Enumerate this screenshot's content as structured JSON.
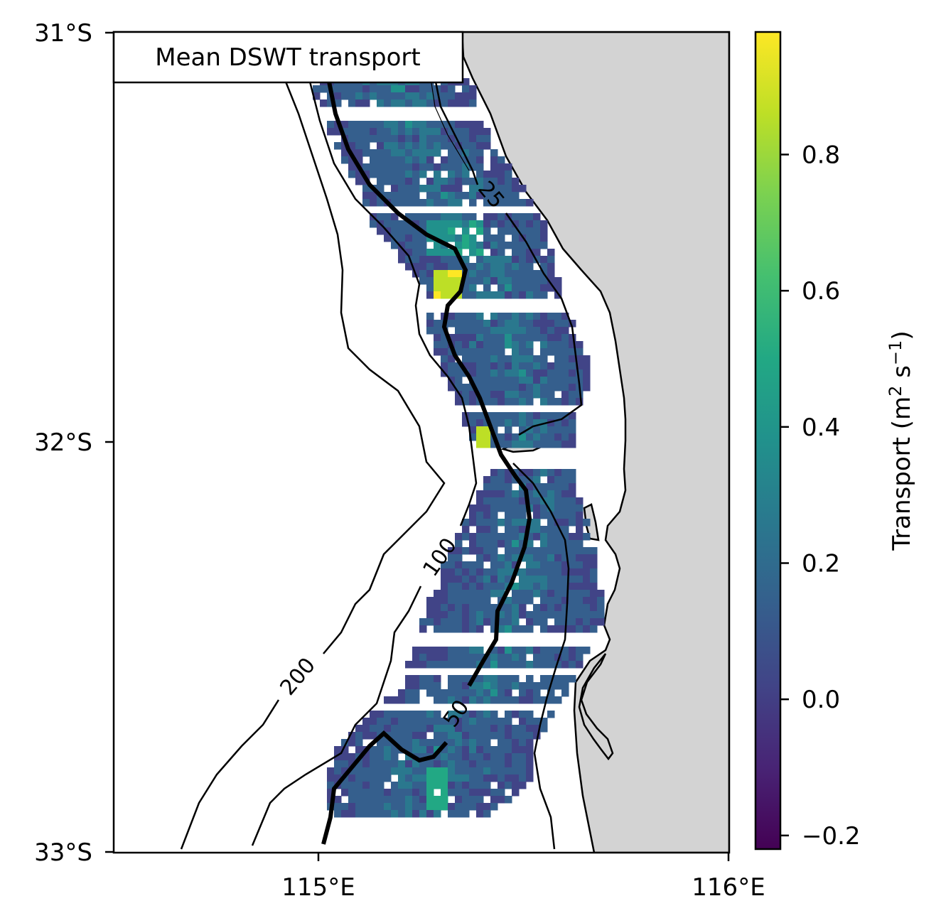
{
  "map": {
    "title": "Mean DSWT transport",
    "lat_ticks": [
      "31°S",
      "32°S",
      "33°S"
    ],
    "lon_ticks": [
      "115°E",
      "116°E"
    ],
    "lon_range": [
      114.5,
      116.0
    ],
    "lat_range": [
      -33.0,
      -31.0
    ],
    "land_color": "#d3d3d3",
    "isobaths": [
      {
        "depth": 25,
        "label": "25"
      },
      {
        "depth": 50,
        "label": "50",
        "emphasized": true
      },
      {
        "depth": 100,
        "label": "100"
      },
      {
        "depth": 200,
        "label": "200"
      }
    ]
  },
  "colorbar": {
    "label_main": "Transport (m",
    "label_sup1": "2",
    "label_mid": " s",
    "label_sup2": "−1",
    "label_end": ")",
    "colormap": "viridis",
    "range": [
      -0.22,
      0.98
    ],
    "ticks": [
      "−0.2",
      "0.0",
      "0.2",
      "0.4",
      "0.6",
      "0.8"
    ]
  }
}
